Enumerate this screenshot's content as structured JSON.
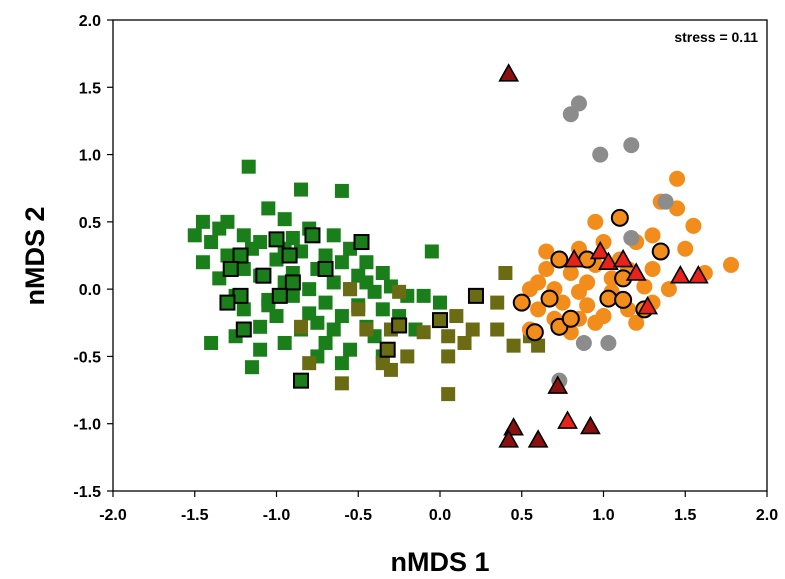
{
  "chart_data": {
    "type": "scatter",
    "title": "",
    "xlabel": "nMDS 1",
    "ylabel": "nMDS 2",
    "xlim": [
      -2.0,
      2.0
    ],
    "ylim": [
      -1.5,
      2.0
    ],
    "xticks": [
      "-2.0",
      "-1.5",
      "-1.0",
      "-0.5",
      "0.0",
      "0.5",
      "1.0",
      "1.5",
      "2.0"
    ],
    "yticks": [
      "-1.5",
      "-1.0",
      "-0.5",
      "0.0",
      "0.5",
      "1.0",
      "1.5",
      "2.0"
    ],
    "grid": false,
    "annotation": "stress = 0.11",
    "series": [
      {
        "marker": "square",
        "color": "#1a7f1a",
        "outline": "none",
        "points": [
          [
            -1.17,
            0.91
          ],
          [
            -0.85,
            0.74
          ],
          [
            -0.6,
            0.73
          ],
          [
            -1.05,
            0.6
          ],
          [
            -0.95,
            0.52
          ],
          [
            -1.3,
            0.5
          ],
          [
            -1.45,
            0.5
          ],
          [
            -1.35,
            0.45
          ],
          [
            -1.5,
            0.4
          ],
          [
            -0.8,
            0.45
          ],
          [
            -0.65,
            0.4
          ],
          [
            -1.2,
            0.4
          ],
          [
            -1.1,
            0.35
          ],
          [
            -0.9,
            0.38
          ],
          [
            -1.4,
            0.35
          ],
          [
            -0.55,
            0.3
          ],
          [
            -0.95,
            0.3
          ],
          [
            -1.15,
            0.3
          ],
          [
            -0.85,
            0.28
          ],
          [
            -0.7,
            0.25
          ],
          [
            -1.3,
            0.25
          ],
          [
            -1.0,
            0.22
          ],
          [
            -0.6,
            0.2
          ],
          [
            -0.45,
            0.2
          ],
          [
            -0.05,
            0.28
          ],
          [
            -1.45,
            0.2
          ],
          [
            -0.75,
            0.15
          ],
          [
            -0.9,
            0.12
          ],
          [
            -0.35,
            0.12
          ],
          [
            -0.5,
            0.1
          ],
          [
            -1.1,
            0.1
          ],
          [
            -1.35,
            0.08
          ],
          [
            -0.65,
            0.05
          ],
          [
            -0.8,
            0.0
          ],
          [
            -0.55,
            0.0
          ],
          [
            -0.4,
            -0.02
          ],
          [
            -0.3,
            0.02
          ],
          [
            -1.25,
            -0.05
          ],
          [
            -1.05,
            -0.08
          ],
          [
            -0.9,
            -0.05
          ],
          [
            -0.2,
            -0.05
          ],
          [
            -0.7,
            -0.1
          ],
          [
            -0.5,
            -0.12
          ],
          [
            -1.2,
            -0.15
          ],
          [
            -0.35,
            -0.15
          ],
          [
            -0.1,
            -0.05
          ],
          [
            0.0,
            -0.1
          ],
          [
            -1.0,
            -0.2
          ],
          [
            -0.8,
            -0.18
          ],
          [
            -0.6,
            -0.2
          ],
          [
            -0.25,
            -0.2
          ],
          [
            -0.45,
            -0.28
          ],
          [
            -0.65,
            -0.3
          ],
          [
            -0.85,
            -0.3
          ],
          [
            -1.1,
            -0.28
          ],
          [
            -1.25,
            -0.35
          ],
          [
            -0.15,
            -0.3
          ],
          [
            -0.4,
            -0.35
          ],
          [
            -0.7,
            -0.4
          ],
          [
            -0.95,
            -0.4
          ],
          [
            -1.4,
            -0.4
          ],
          [
            -0.55,
            -0.45
          ],
          [
            -0.35,
            -0.5
          ],
          [
            -0.75,
            -0.5
          ],
          [
            -0.6,
            -0.55
          ],
          [
            -1.1,
            -0.45
          ],
          [
            -1.15,
            -0.58
          ],
          [
            -1.2,
            0.15
          ],
          [
            -0.95,
            0.05
          ],
          [
            -1.05,
            -0.12
          ],
          [
            -0.75,
            -0.25
          ],
          [
            -0.45,
            0.05
          ]
        ]
      },
      {
        "marker": "square",
        "color": "#1a7f1a",
        "outline": "#000000",
        "points": [
          [
            -1.0,
            0.37
          ],
          [
            -0.78,
            0.4
          ],
          [
            -0.48,
            0.35
          ],
          [
            -1.22,
            0.25
          ],
          [
            -0.92,
            0.25
          ],
          [
            -1.28,
            0.15
          ],
          [
            -0.7,
            0.15
          ],
          [
            -1.08,
            0.1
          ],
          [
            -0.9,
            0.05
          ],
          [
            -1.22,
            -0.05
          ],
          [
            -1.3,
            -0.1
          ],
          [
            -0.98,
            -0.05
          ],
          [
            -1.2,
            -0.3
          ],
          [
            -0.85,
            -0.68
          ]
        ]
      },
      {
        "marker": "square",
        "color": "#6b6b14",
        "outline": "none",
        "points": [
          [
            -0.55,
            0.0
          ],
          [
            -0.25,
            -0.02
          ],
          [
            -0.5,
            -0.15
          ],
          [
            -0.45,
            -0.3
          ],
          [
            -0.3,
            -0.3
          ],
          [
            -0.1,
            -0.32
          ],
          [
            0.05,
            -0.35
          ],
          [
            -0.35,
            -0.55
          ],
          [
            -0.2,
            -0.5
          ],
          [
            0.05,
            -0.5
          ],
          [
            0.15,
            -0.4
          ],
          [
            -0.8,
            -0.55
          ],
          [
            -0.85,
            -0.28
          ],
          [
            -0.6,
            -0.7
          ],
          [
            -0.3,
            -0.6
          ],
          [
            0.1,
            -0.2
          ],
          [
            0.2,
            -0.3
          ],
          [
            0.35,
            -0.3
          ],
          [
            0.4,
            0.12
          ],
          [
            0.35,
            -0.1
          ],
          [
            0.55,
            -0.35
          ],
          [
            0.45,
            -0.42
          ],
          [
            0.6,
            -0.42
          ],
          [
            0.05,
            -0.78
          ]
        ]
      },
      {
        "marker": "square",
        "color": "#6b6b14",
        "outline": "#000000",
        "points": [
          [
            -0.25,
            -0.27
          ],
          [
            -0.32,
            -0.45
          ],
          [
            0.0,
            -0.23
          ],
          [
            0.22,
            -0.05
          ]
        ]
      },
      {
        "marker": "circle",
        "color": "#f28c1a",
        "outline": "none",
        "points": [
          [
            1.45,
            0.82
          ],
          [
            1.35,
            0.65
          ],
          [
            1.45,
            0.6
          ],
          [
            1.55,
            0.47
          ],
          [
            1.3,
            0.4
          ],
          [
            1.5,
            0.3
          ],
          [
            0.95,
            0.5
          ],
          [
            1.2,
            0.35
          ],
          [
            1.0,
            0.35
          ],
          [
            0.65,
            0.28
          ],
          [
            0.85,
            0.3
          ],
          [
            1.78,
            0.18
          ],
          [
            1.62,
            0.12
          ],
          [
            1.3,
            0.15
          ],
          [
            1.15,
            0.15
          ],
          [
            0.95,
            0.18
          ],
          [
            0.8,
            0.12
          ],
          [
            0.6,
            0.05
          ],
          [
            0.7,
            0.0
          ],
          [
            0.85,
            -0.02
          ],
          [
            1.05,
            -0.02
          ],
          [
            1.25,
            0.02
          ],
          [
            1.4,
            0.0
          ],
          [
            0.55,
            0.0
          ],
          [
            0.75,
            -0.1
          ],
          [
            0.9,
            -0.12
          ],
          [
            1.0,
            -0.2
          ],
          [
            1.15,
            -0.15
          ],
          [
            0.6,
            -0.15
          ],
          [
            0.7,
            -0.22
          ],
          [
            0.85,
            -0.22
          ],
          [
            0.95,
            -0.25
          ],
          [
            1.05,
            0.08
          ],
          [
            0.8,
            -0.32
          ],
          [
            0.55,
            -0.3
          ],
          [
            1.2,
            -0.25
          ],
          [
            1.1,
            0.22
          ],
          [
            0.65,
            0.15
          ],
          [
            0.9,
            0.05
          ],
          [
            1.3,
            -0.1
          ]
        ]
      },
      {
        "marker": "circle",
        "color": "#f28c1a",
        "outline": "#000000",
        "points": [
          [
            1.1,
            0.53
          ],
          [
            1.35,
            0.28
          ],
          [
            0.73,
            0.22
          ],
          [
            0.9,
            0.22
          ],
          [
            1.12,
            0.08
          ],
          [
            0.5,
            -0.1
          ],
          [
            0.67,
            -0.07
          ],
          [
            1.03,
            -0.07
          ],
          [
            1.12,
            -0.08
          ],
          [
            1.25,
            -0.15
          ],
          [
            0.58,
            -0.32
          ],
          [
            0.73,
            -0.28
          ],
          [
            0.8,
            -0.22
          ]
        ]
      },
      {
        "marker": "circle",
        "color": "#8c8c8c",
        "outline": "none",
        "points": [
          [
            0.85,
            1.38
          ],
          [
            0.8,
            1.3
          ],
          [
            0.98,
            1.0
          ],
          [
            1.17,
            1.07
          ],
          [
            1.38,
            0.65
          ],
          [
            1.17,
            0.38
          ],
          [
            0.88,
            -0.4
          ],
          [
            1.03,
            -0.4
          ],
          [
            0.73,
            -0.68
          ]
        ]
      },
      {
        "marker": "triangle",
        "color": "#8b1010",
        "outline": "#000000",
        "points": [
          [
            0.42,
            1.6
          ],
          [
            0.72,
            -0.72
          ],
          [
            0.45,
            -1.03
          ],
          [
            0.6,
            -1.12
          ],
          [
            0.42,
            -1.12
          ],
          [
            0.92,
            -1.02
          ]
        ]
      },
      {
        "marker": "triangle",
        "color": "#e8231c",
        "outline": "#000000",
        "points": [
          [
            0.82,
            0.22
          ],
          [
            0.98,
            0.28
          ],
          [
            1.03,
            0.2
          ],
          [
            1.12,
            0.22
          ],
          [
            1.2,
            0.12
          ],
          [
            1.27,
            -0.13
          ],
          [
            1.58,
            0.1
          ],
          [
            1.47,
            0.1
          ],
          [
            0.78,
            -0.98
          ]
        ]
      }
    ]
  }
}
